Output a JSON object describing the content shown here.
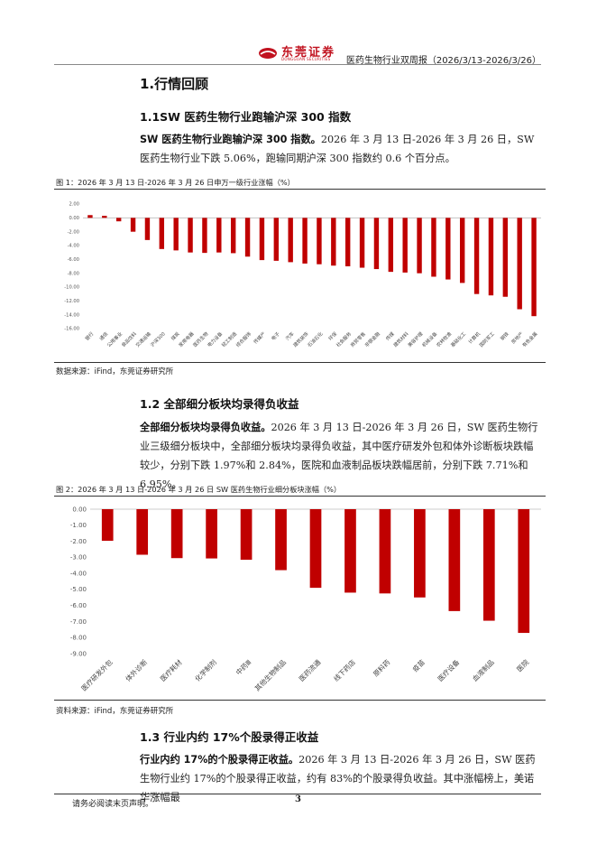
{
  "header": {
    "logo_text": "东莞证券",
    "logo_sub": "DONGGUAN SECURITIES",
    "report_title": "医药生物行业双周报（2026/3/13-2026/3/26）"
  },
  "section1": {
    "title": "1.行情回顾"
  },
  "section1_1": {
    "title": "1.1SW 医药生物行业跑输沪深 300 指数",
    "lead": "SW 医药生物行业跑输沪深 300 指数。",
    "body": "2026 年 3 月 13 日-2026 年 3 月 26 日，SW 医药生物行业下跌 5.06%，跑输同期沪深 300 指数约 0.6 个百分点。"
  },
  "figure1": {
    "caption": "图 1：2026 年 3 月 13 日-2026 年 3 月 26 日申万一级行业涨幅（%）",
    "source": "数据来源：iFind，东莞证券研究所",
    "bar_color": "#c00000"
  },
  "section1_2": {
    "title": "1.2 全部细分板块均录得负收益",
    "lead": "全部细分板块均录得负收益。",
    "body": "2026 年 3 月 13 日-2026 年 3 月 26 日，SW 医药生物行业三级细分板块中，全部细分板块均录得负收益，其中医疗研发外包和体外诊断板块跌幅较少，分别下跌 1.97%和 2.84%，医院和血液制品板块跌幅居前，分别下跌 7.71%和 6.95%。"
  },
  "figure2": {
    "caption": "图 2：2026 年 3 月 13 日-2026 年 3 月 26 日 SW 医药生物行业细分板块涨幅（%）",
    "source": "资料来源：iFind，东莞证券研究所",
    "bar_color": "#c00000"
  },
  "section1_3": {
    "title": "1.3 行业内约 17%个股录得正收益",
    "lead": "行业内约 17%的个股录得正收益。",
    "body": "2026 年 3 月 13 日-2026 年 3 月 26 日，SW 医药生物行业约 17%的个股录得正收益，约有 83%的个股录得负收益。其中涨幅榜上，美诺华涨幅最"
  },
  "footer": {
    "note": "请务必阅读末页声明。",
    "page_number": "3"
  },
  "chart_data": [
    {
      "type": "bar",
      "categories": [
        "银行",
        "通信",
        "公用事业",
        "食品饮料",
        "交通运输",
        "沪深300",
        "煤炭",
        "家用电器",
        "医药生物",
        "电力设备",
        "轻工制造",
        "综合服饰",
        "传媒产",
        "电子",
        "汽车",
        "建筑装饰",
        "石油石化",
        "环保",
        "社会服务",
        "商贸零售",
        "非银金融",
        "传媒",
        "建筑材料",
        "美容护理",
        "机械设备",
        "农林牧渔",
        "基础化工",
        "计算机",
        "国防军工",
        "钢铁",
        "房地产",
        "有色金属"
      ],
      "values": [
        0.4,
        0.3,
        -0.5,
        -2.0,
        -3.2,
        -4.5,
        -4.7,
        -5.0,
        -5.06,
        -5.0,
        -5.1,
        -5.6,
        -6.1,
        -6.2,
        -6.4,
        -6.6,
        -6.7,
        -6.9,
        -7.0,
        -7.2,
        -7.4,
        -7.8,
        -7.9,
        -8.0,
        -8.5,
        -8.9,
        -9.4,
        -11.0,
        -11.2,
        -11.4,
        -13.2,
        -14.2
      ],
      "ylim": [
        -16,
        2
      ],
      "yticks": [
        "2.00",
        "0.00",
        "-2.00",
        "-4.00",
        "-6.00",
        "-8.00",
        "-10.00",
        "-12.00",
        "-14.00",
        "-16.00"
      ],
      "grid": false,
      "legend": "none"
    },
    {
      "type": "bar",
      "categories": [
        "医疗研发外包",
        "体外诊断",
        "医疗耗材",
        "化学制剂",
        "中药Ⅲ",
        "其他生物制品",
        "医药流通",
        "线下药店",
        "原料药",
        "疫苗",
        "医疗设备",
        "血液制品",
        "医院"
      ],
      "values": [
        -1.97,
        -2.84,
        -3.05,
        -3.07,
        -3.15,
        -3.8,
        -4.9,
        -5.2,
        -5.25,
        -5.5,
        -6.35,
        -6.95,
        -7.71
      ],
      "ylim": [
        -9,
        0
      ],
      "yticks": [
        "0.00",
        "-1.00",
        "-2.00",
        "-3.00",
        "-4.00",
        "-5.00",
        "-6.00",
        "-7.00",
        "-8.00",
        "-9.00"
      ],
      "grid": false,
      "legend": "none"
    }
  ]
}
